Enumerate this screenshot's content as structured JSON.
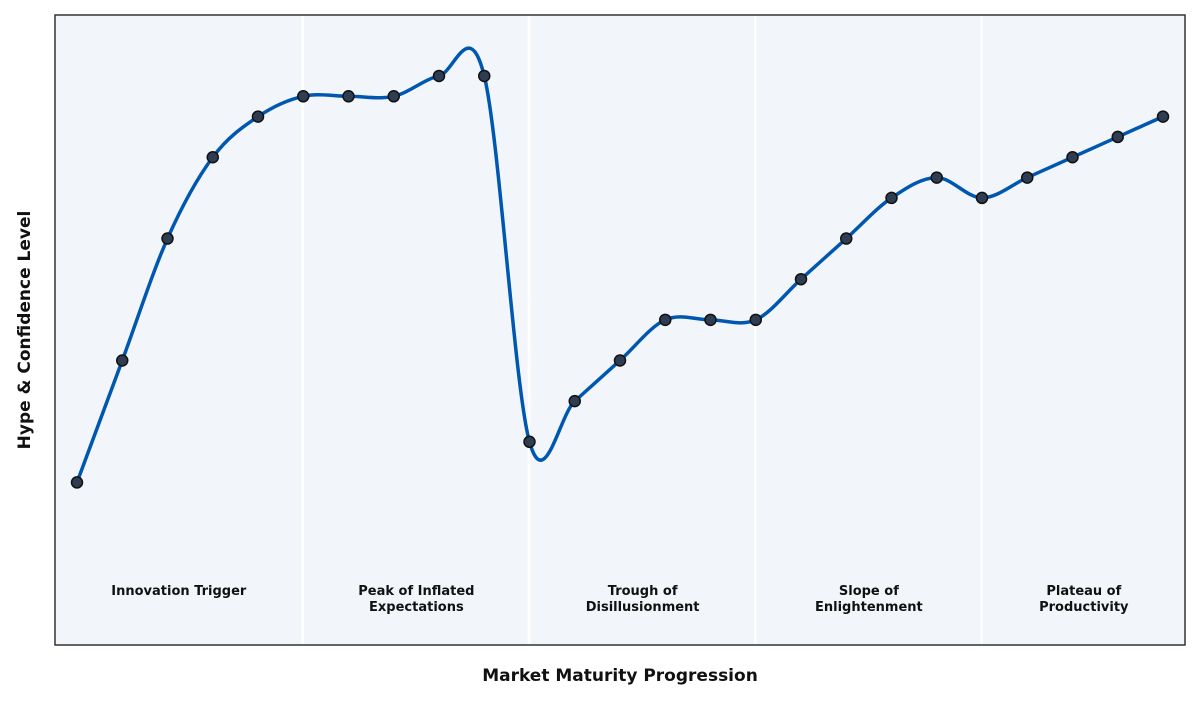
{
  "chart_data": {
    "type": "line",
    "title": "",
    "xlabel": "Market Maturity Progression",
    "ylabel": "Hype & Confidence Level",
    "xlim": [
      0,
      25
    ],
    "ylim": [
      0,
      31
    ],
    "grid": false,
    "x": [
      0,
      1,
      2,
      3,
      4,
      5,
      6,
      7,
      8,
      9,
      10,
      11,
      12,
      13,
      14,
      15,
      16,
      17,
      18,
      19,
      20,
      21,
      22,
      23,
      24
    ],
    "series": [
      {
        "values": [
          8,
          14,
          20,
          24,
          26,
          27,
          27,
          27,
          28,
          28,
          10,
          12,
          14,
          16,
          16,
          16,
          18,
          20,
          22,
          23,
          22,
          23,
          24,
          25,
          26
        ]
      }
    ],
    "phases": [
      {
        "start": -0.5,
        "end": 5,
        "lines": [
          "Innovation Trigger"
        ]
      },
      {
        "start": 5,
        "end": 10,
        "lines": [
          "Peak of Inflated",
          "Expectations"
        ]
      },
      {
        "start": 10,
        "end": 15,
        "lines": [
          "Trough of",
          "Disillusionment"
        ]
      },
      {
        "start": 15,
        "end": 20,
        "lines": [
          "Slope of",
          "Enlightenment"
        ]
      },
      {
        "start": 20,
        "end": 24.5,
        "lines": [
          "Plateau of",
          "Productivity"
        ]
      }
    ],
    "colors": {
      "line": "#0057b0",
      "marker_fill": "#2f3d52",
      "marker_edge": "#111111",
      "plot_bg": "#f2f6fa",
      "separator": "#ffffff",
      "frame": "#333333"
    }
  }
}
